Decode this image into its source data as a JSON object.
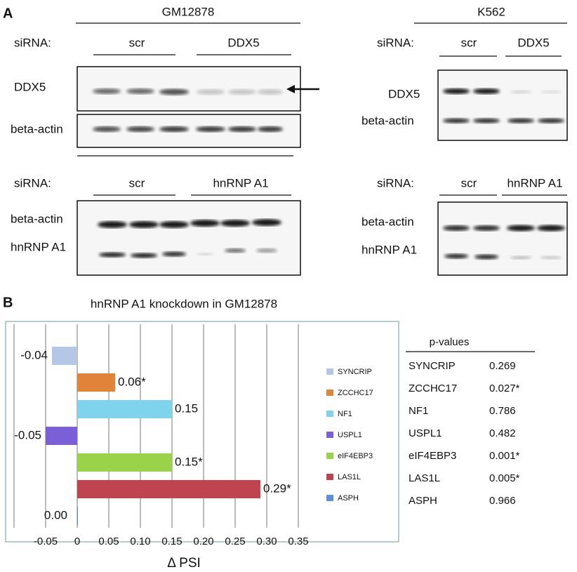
{
  "panel_a": {
    "label": "A",
    "gm12878": {
      "title": "GM12878",
      "ddx5": {
        "sirna_label": "siRNA:",
        "control": "scr",
        "knockdown": "DDX5",
        "rows": [
          "DDX5",
          "beta-actin"
        ]
      },
      "hnrnpa1": {
        "sirna_label": "siRNA:",
        "control": "scr",
        "knockdown": "hnRNP A1",
        "rows": [
          "beta-actin",
          "hnRNP A1"
        ]
      }
    },
    "k562": {
      "title": "K562",
      "ddx5": {
        "sirna_label": "siRNA:",
        "control": "scr",
        "knockdown": "DDX5",
        "rows": [
          "DDX5",
          "beta-actin"
        ]
      },
      "hnrnpa1": {
        "sirna_label": "siRNA:",
        "control": "scr",
        "knockdown": "hnRNP A1",
        "rows": [
          "beta-actin",
          "hnRNP A1"
        ]
      }
    }
  },
  "panel_b_label": "B",
  "chart_data": {
    "type": "bar",
    "orientation": "horizontal",
    "title": "hnRNP A1 knockdown in GM12878",
    "xlabel": "Δ PSI",
    "categories": [
      "SYNCRIP",
      "ZCCHC17",
      "NF1",
      "USPL1",
      "eIF4EBP3",
      "LAS1L",
      "ASPH"
    ],
    "values": [
      -0.04,
      0.06,
      0.15,
      -0.05,
      0.15,
      0.29,
      0.0
    ],
    "value_labels": [
      "-0.04",
      "0.06*",
      "0.15",
      "-0.05",
      "0.15*",
      "0.29*",
      "0.00"
    ],
    "colors": [
      "#b4c7e7",
      "#e0843a",
      "#7fd3ec",
      "#7a5fd6",
      "#9ad34a",
      "#c0444f",
      "#5b8fe0"
    ],
    "xlim": [
      -0.1,
      0.35
    ],
    "xticks": [
      -0.05,
      0,
      0.05,
      {
        "value": 0.1,
        "label": "0.10"
      },
      0.15,
      {
        "value": 0.2,
        "label": "0.20"
      },
      0.25,
      {
        "value": 0.3,
        "label": "0.30"
      },
      0.35
    ],
    "grid": true,
    "legend": "right"
  },
  "pvalues_table": {
    "header": "p-values",
    "rows": [
      [
        "SYNCRIP",
        "0.269"
      ],
      [
        "ZCCHC17",
        "0.027*"
      ],
      [
        "NF1",
        "0.786"
      ],
      [
        "USPL1",
        "0.482"
      ],
      [
        "eIF4EBP3",
        "0.001*"
      ],
      [
        "LAS1L",
        "0.005*"
      ],
      [
        "ASPH",
        "0.966"
      ]
    ]
  }
}
